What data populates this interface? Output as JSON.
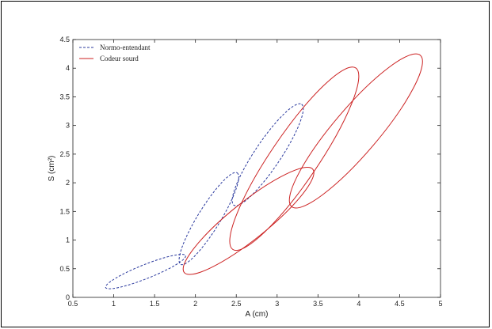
{
  "chart_data": {
    "type": "line",
    "xlabel": "A (cm)",
    "ylabel": "S (cm²)",
    "xlim": [
      0.5,
      5
    ],
    "ylim": [
      0,
      4.5
    ],
    "x_ticks": [
      0.5,
      1,
      1.5,
      2,
      2.5,
      3,
      3.5,
      4,
      4.5,
      5
    ],
    "x_tick_labels": [
      "0.5",
      "1",
      "1.5",
      "2",
      "2.5",
      "3",
      "3.5",
      "4",
      "4.5",
      "5"
    ],
    "y_ticks": [
      0,
      0.5,
      1,
      1.5,
      2,
      2.5,
      3,
      3.5,
      4,
      4.5
    ],
    "y_tick_labels": [
      "0",
      "0.5",
      "1",
      "1.5",
      "2",
      "2.5",
      "3",
      "3.5",
      "4",
      "4.5"
    ],
    "grid": false,
    "legend_position": "top-left",
    "series": [
      {
        "name": "Normo-entendant",
        "color": "#2b3a9e",
        "line_style": "dashed",
        "ellipses": [
          {
            "x_range": [
              0.9,
              1.88
            ],
            "y_range": [
              0.15,
              0.75
            ]
          },
          {
            "x_range": [
              1.8,
              2.53
            ],
            "y_range": [
              0.57,
              2.18
            ]
          },
          {
            "x_range": [
              2.45,
              3.32
            ],
            "y_range": [
              1.6,
              3.38
            ]
          }
        ]
      },
      {
        "name": "Codeur sourd",
        "color": "#cc2222",
        "line_style": "solid",
        "ellipses": [
          {
            "x_range": [
              1.85,
              3.45
            ],
            "y_range": [
              0.4,
              2.27
            ]
          },
          {
            "x_range": [
              2.42,
              4.0
            ],
            "y_range": [
              0.82,
              4.02
            ]
          },
          {
            "x_range": [
              3.15,
              4.78
            ],
            "y_range": [
              1.56,
              4.25
            ]
          }
        ]
      }
    ]
  }
}
